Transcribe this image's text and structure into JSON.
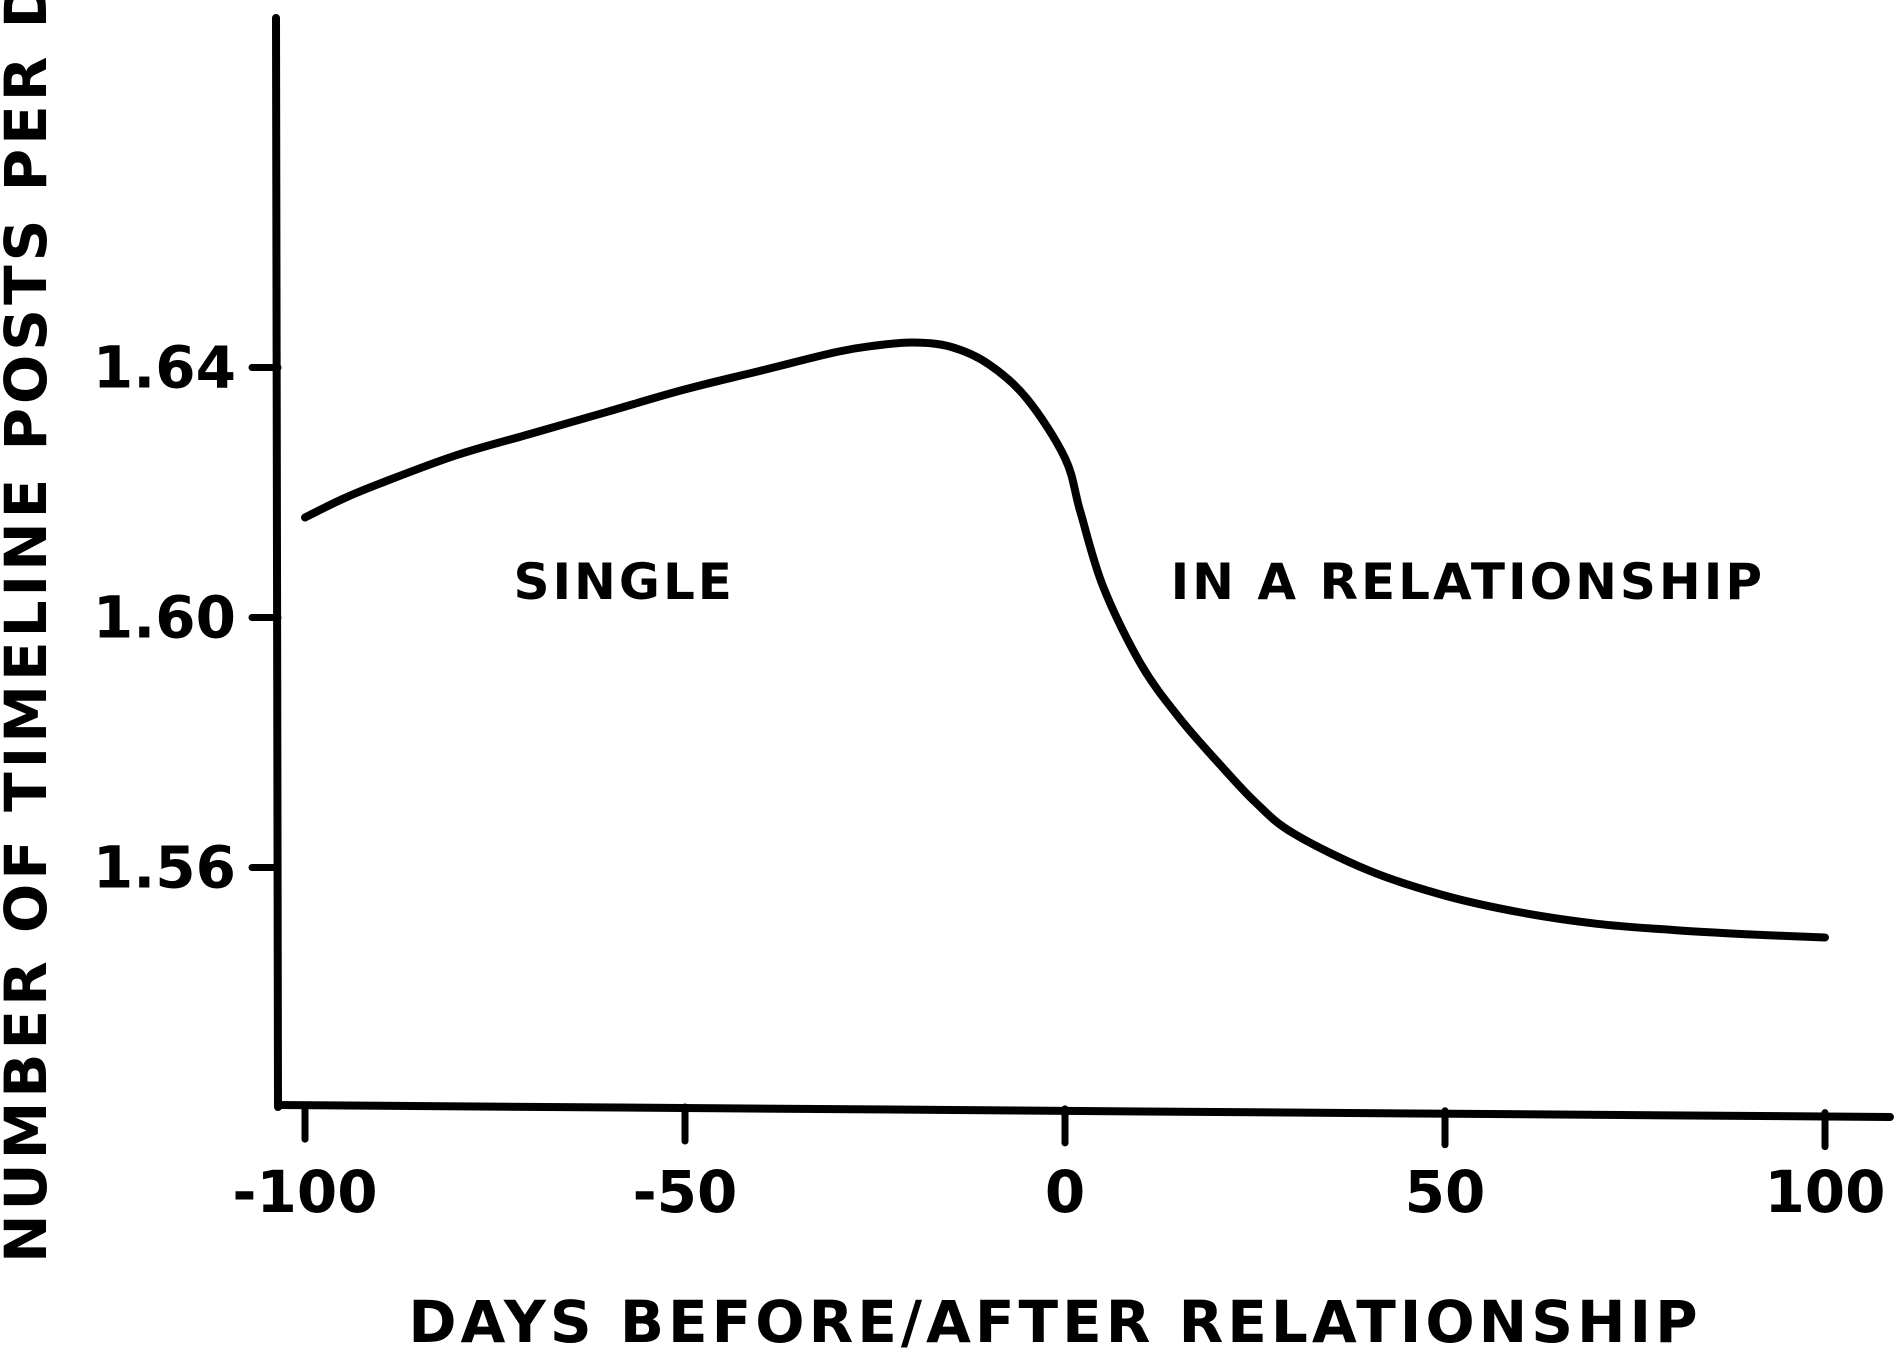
{
  "chart_data": {
    "type": "line",
    "xlabel": "DAYS BEFORE/AFTER RELATIONSHIP",
    "ylabel": "NUMBER OF TIMELINE POSTS PER DAY",
    "xlim": [
      -105,
      105
    ],
    "ylim": [
      1.522,
      1.65
    ],
    "x_ticks": [
      -100,
      -50,
      0,
      50,
      100
    ],
    "x_tick_labels": [
      "-100",
      "-50",
      "0",
      "50",
      "100"
    ],
    "y_ticks": [
      1.56,
      1.6,
      1.64
    ],
    "y_tick_labels": [
      "1.56",
      "1.60",
      "1.64"
    ],
    "annotations": [
      {
        "text": "SINGLE",
        "x": -58,
        "y": 1.603
      },
      {
        "text": "IN A RELATIONSHIP",
        "x": 53,
        "y": 1.603
      }
    ],
    "grid": false,
    "legend": "none",
    "series": [
      {
        "color": "#000000",
        "x": [
          -100,
          -95,
          -90,
          -80,
          -70,
          -60,
          -50,
          -40,
          -30,
          -25,
          -20,
          -15,
          -10,
          -5,
          0,
          2,
          5,
          10,
          15,
          20,
          25,
          30,
          40,
          50,
          60,
          70,
          80,
          90,
          100
        ],
        "y": [
          1.616,
          1.619,
          1.6215,
          1.626,
          1.6295,
          1.633,
          1.6365,
          1.6395,
          1.6425,
          1.6435,
          1.644,
          1.6433,
          1.6405,
          1.635,
          1.6255,
          1.617,
          1.605,
          1.5925,
          1.584,
          1.577,
          1.5705,
          1.5655,
          1.5595,
          1.5555,
          1.5528,
          1.551,
          1.55,
          1.5493,
          1.5488
        ]
      }
    ]
  }
}
